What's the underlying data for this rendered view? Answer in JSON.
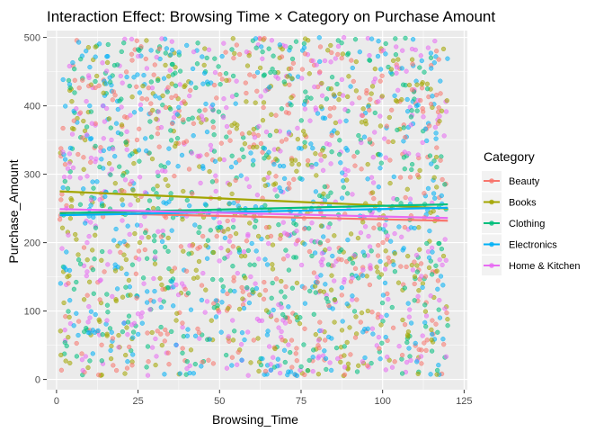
{
  "chart_data": {
    "type": "scatter",
    "title": "Interaction Effect: Browsing Time × Category on Purchase Amount",
    "xlabel": "Browsing_Time",
    "ylabel": "Purchase_Amount",
    "xlim": [
      -3,
      126
    ],
    "ylim": [
      -15,
      510
    ],
    "xticks": [
      0,
      25,
      50,
      75,
      100,
      125
    ],
    "yticks": [
      0,
      100,
      200,
      300,
      400,
      500
    ],
    "grid": true,
    "legend": {
      "title": "Category",
      "placement": "right"
    },
    "points_per_series": 420,
    "point_x_range": [
      1,
      120
    ],
    "point_y_range": [
      5,
      500
    ],
    "series": [
      {
        "name": "Beauty",
        "color": "#F8766D",
        "trend": {
          "x": [
            1,
            120
          ],
          "y": [
            244,
            232
          ]
        }
      },
      {
        "name": "Books",
        "color": "#A3A500",
        "trend": {
          "x": [
            1,
            120
          ],
          "y": [
            275,
            250
          ]
        }
      },
      {
        "name": "Clothing",
        "color": "#00BF7D",
        "trend": {
          "x": [
            1,
            120
          ],
          "y": [
            243,
            256
          ]
        }
      },
      {
        "name": "Electronics",
        "color": "#00B0F6",
        "trend": {
          "x": [
            1,
            120
          ],
          "y": [
            240,
            251
          ]
        }
      },
      {
        "name": "Home & Kitchen",
        "color": "#E76BF3",
        "trend": {
          "x": [
            1,
            120
          ],
          "y": [
            249,
            236
          ]
        }
      }
    ]
  }
}
